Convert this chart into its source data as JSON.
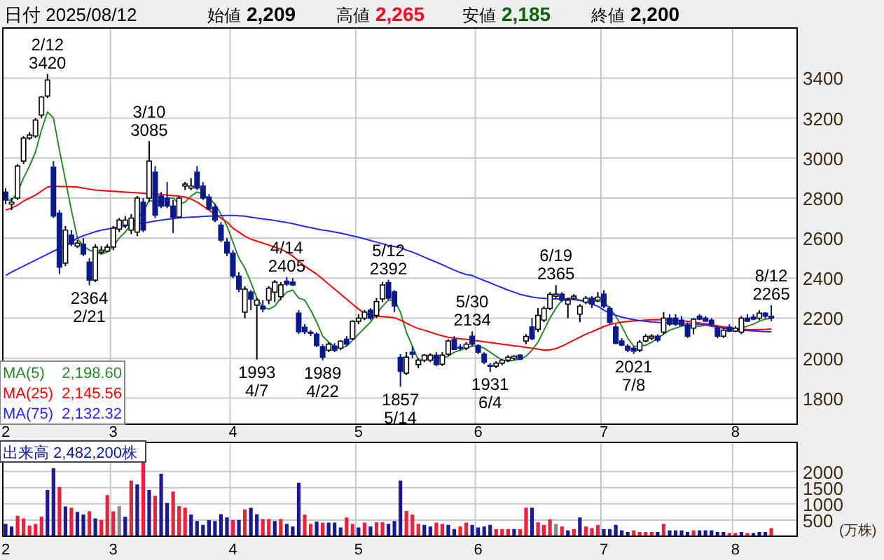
{
  "chart_data": [
    {
      "type": "candlestick",
      "title": "日付 2025/08/12",
      "annotations": [
        "始値 2,209",
        "高値 2,265",
        "安値 2,185",
        "終値 2,200",
        "2,198.60",
        "2,145.56",
        "2,132.32",
        {
          "text": "2/12\n3420",
          "y": 3420
        },
        {
          "text": "3/10\n3085",
          "y": 3085
        },
        {
          "text": "4/14\n2405",
          "y": 2405
        },
        {
          "text": "5/12\n2392",
          "y": 2392
        },
        {
          "text": "5/30\n2134",
          "y": 2134
        },
        {
          "text": "6/19\n2365",
          "y": 2365
        },
        {
          "text": "8/12\n2265",
          "y": 2265
        },
        {
          "text": "2364\n2/21",
          "y": 2364
        },
        {
          "text": "1993\n4/7",
          "y": 1993
        },
        {
          "text": "1989\n4/22",
          "y": 1989
        },
        {
          "text": "1857\n5/14",
          "y": 1857
        },
        {
          "text": "1931\n6/4",
          "y": 1931
        },
        {
          "text": "2021\n7/8",
          "y": 2021
        }
      ],
      "categories": [
        "2",
        null,
        null,
        null,
        null,
        null,
        null,
        null,
        null,
        null,
        null,
        null,
        null,
        null,
        null,
        null,
        null,
        null,
        "3",
        null,
        null,
        null,
        null,
        null,
        null,
        null,
        null,
        null,
        null,
        null,
        null,
        null,
        null,
        null,
        null,
        null,
        null,
        null,
        "4",
        null,
        null,
        null,
        null,
        null,
        null,
        null,
        null,
        null,
        null,
        null,
        null,
        null,
        null,
        null,
        null,
        null,
        null,
        null,
        null,
        "5",
        null,
        null,
        null,
        null,
        null,
        null,
        null,
        null,
        null,
        null,
        null,
        null,
        null,
        null,
        null,
        null,
        null,
        null,
        null,
        "6",
        null,
        null,
        null,
        null,
        null,
        null,
        null,
        null,
        null,
        null,
        null,
        null,
        null,
        null,
        null,
        null,
        null,
        null,
        null,
        null,
        "7",
        null,
        null,
        null,
        null,
        null,
        null,
        null,
        null,
        null,
        null,
        null,
        null,
        null,
        null,
        null,
        null,
        null,
        null,
        null,
        null,
        null,
        "8",
        null,
        null,
        null,
        null,
        null,
        null
      ],
      "ohlc": [
        [
          2830,
          2850,
          2770,
          2790
        ],
        [
          2770,
          2800,
          2740,
          2780
        ],
        [
          2800,
          2970,
          2790,
          2960
        ],
        [
          2985,
          3110,
          2970,
          3100
        ],
        [
          3100,
          3130,
          3090,
          3115
        ],
        [
          3110,
          3200,
          3100,
          3190
        ],
        [
          3215,
          3310,
          3200,
          3305
        ],
        [
          3310,
          3420,
          3300,
          3390
        ],
        [
          2955,
          2985,
          2700,
          2710
        ],
        [
          2725,
          2740,
          2420,
          2455
        ],
        [
          2475,
          2660,
          2460,
          2640
        ],
        [
          2615,
          2640,
          2560,
          2570
        ],
        [
          2560,
          2590,
          2550,
          2575
        ],
        [
          2570,
          2600,
          2510,
          2520
        ],
        [
          2480,
          2500,
          2364,
          2390
        ],
        [
          2390,
          2570,
          2380,
          2555
        ],
        [
          2530,
          2560,
          2520,
          2540
        ],
        [
          2535,
          2570,
          2530,
          2555
        ],
        [
          2555,
          2660,
          2540,
          2650
        ],
        [
          2645,
          2700,
          2630,
          2690
        ],
        [
          2665,
          2710,
          2650,
          2690
        ],
        [
          2640,
          2720,
          2620,
          2700
        ],
        [
          2630,
          2810,
          2610,
          2800
        ],
        [
          2780,
          2800,
          2630,
          2640
        ],
        [
          2800,
          3085,
          2780,
          2985
        ],
        [
          2930,
          2960,
          2700,
          2715
        ],
        [
          2810,
          2830,
          2750,
          2760
        ],
        [
          2800,
          2880,
          2750,
          2760
        ],
        [
          2760,
          2790,
          2625,
          2705
        ],
        [
          2705,
          2810,
          2700,
          2800
        ],
        [
          2860,
          2880,
          2840,
          2870
        ],
        [
          2850,
          2900,
          2840,
          2860
        ],
        [
          2930,
          2960,
          2840,
          2850
        ],
        [
          2860,
          2880,
          2790,
          2800
        ],
        [
          2805,
          2820,
          2740,
          2745
        ],
        [
          2755,
          2770,
          2680,
          2690
        ],
        [
          2665,
          2680,
          2580,
          2590
        ],
        [
          2580,
          2600,
          2510,
          2525
        ],
        [
          2525,
          2540,
          2400,
          2410
        ],
        [
          2410,
          2430,
          2330,
          2345
        ],
        [
          2230,
          2360,
          2200,
          2345
        ],
        [
          2330,
          2340,
          2240,
          2295
        ],
        [
          2265,
          2300,
          1993,
          2290
        ],
        [
          2260,
          2290,
          2230,
          2245
        ],
        [
          2290,
          2360,
          2270,
          2350
        ],
        [
          2330,
          2390,
          2280,
          2380
        ],
        [
          2307,
          2380,
          2290,
          2366
        ],
        [
          2385,
          2405,
          2360,
          2370
        ],
        [
          2380,
          2400,
          2360,
          2366
        ],
        [
          2225,
          2240,
          2120,
          2132
        ],
        [
          2155,
          2170,
          2120,
          2132
        ],
        [
          2130,
          2140,
          2110,
          2125
        ],
        [
          2120,
          2130,
          2055,
          2063
        ],
        [
          2058,
          2070,
          1989,
          2005
        ],
        [
          2040,
          2080,
          2030,
          2070
        ],
        [
          2060,
          2075,
          2030,
          2040
        ],
        [
          2050,
          2090,
          2040,
          2085
        ],
        [
          2095,
          2110,
          2060,
          2070
        ],
        [
          2097,
          2190,
          2090,
          2184
        ],
        [
          2184,
          2220,
          2170,
          2200
        ],
        [
          2200,
          2240,
          2190,
          2230
        ],
        [
          2240,
          2250,
          2190,
          2200
        ],
        [
          2214,
          2300,
          2200,
          2283
        ],
        [
          2296,
          2380,
          2280,
          2366
        ],
        [
          2378,
          2392,
          2290,
          2300
        ],
        [
          2331,
          2340,
          2230,
          2261
        ],
        [
          2004,
          2020,
          1857,
          1934
        ],
        [
          1925,
          2030,
          1915,
          2005
        ],
        [
          2030,
          2060,
          2000,
          2020
        ],
        [
          1968,
          2000,
          1950,
          1990
        ],
        [
          1990,
          2020,
          1980,
          2015
        ],
        [
          1990,
          2025,
          1980,
          2015
        ],
        [
          2015,
          2030,
          1960,
          1968
        ],
        [
          1970,
          2030,
          1960,
          2015
        ],
        [
          2020,
          2095,
          2010,
          2086
        ],
        [
          2093,
          2110,
          2040,
          2044
        ],
        [
          2055,
          2070,
          2040,
          2050
        ],
        [
          2050,
          2080,
          2040,
          2070
        ],
        [
          2110,
          2134,
          2060,
          2070
        ],
        [
          2063,
          2070,
          2020,
          2030
        ],
        [
          2020,
          2030,
          1970,
          1980
        ],
        [
          1965,
          1975,
          1931,
          1960
        ],
        [
          1960,
          1985,
          1950,
          1975
        ],
        [
          1975,
          1995,
          1965,
          1990
        ],
        [
          1990,
          2015,
          1980,
          2005
        ],
        [
          2000,
          2015,
          1990,
          2010
        ],
        [
          2015,
          2020,
          1990,
          1995
        ],
        [
          2086,
          2120,
          2070,
          2109
        ],
        [
          2156,
          2200,
          2090,
          2097
        ],
        [
          2144,
          2250,
          2130,
          2214
        ],
        [
          2190,
          2260,
          2180,
          2249
        ],
        [
          2249,
          2330,
          2240,
          2319
        ],
        [
          2310,
          2365,
          2300,
          2320
        ],
        [
          2320,
          2330,
          2280,
          2290
        ],
        [
          2270,
          2300,
          2200,
          2290
        ],
        [
          2300,
          2320,
          2290,
          2310
        ],
        [
          2220,
          2270,
          2180,
          2260
        ],
        [
          2280,
          2310,
          2270,
          2300
        ],
        [
          2300,
          2310,
          2250,
          2270
        ],
        [
          2290,
          2330,
          2280,
          2305
        ],
        [
          2320,
          2340,
          2250,
          2260
        ],
        [
          2249,
          2260,
          2170,
          2179
        ],
        [
          2156,
          2170,
          2070,
          2074
        ],
        [
          2086,
          2100,
          2060,
          2065
        ],
        [
          2060,
          2070,
          2030,
          2040
        ],
        [
          2050,
          2060,
          2021,
          2035
        ],
        [
          2040,
          2090,
          2030,
          2080
        ],
        [
          2086,
          2120,
          2080,
          2109
        ],
        [
          2100,
          2120,
          2090,
          2110
        ],
        [
          2110,
          2120,
          2080,
          2090
        ],
        [
          2130,
          2230,
          2120,
          2200
        ],
        [
          2200,
          2220,
          2160,
          2170
        ],
        [
          2200,
          2220,
          2160,
          2170
        ],
        [
          2190,
          2210,
          2160,
          2165
        ],
        [
          2165,
          2180,
          2100,
          2110
        ],
        [
          2150,
          2200,
          2120,
          2195
        ],
        [
          2210,
          2220,
          2190,
          2195
        ],
        [
          2200,
          2210,
          2180,
          2185
        ],
        [
          2190,
          2200,
          2160,
          2170
        ],
        [
          2150,
          2160,
          2100,
          2110
        ],
        [
          2110,
          2150,
          2100,
          2140
        ],
        [
          2155,
          2170,
          2130,
          2135
        ],
        [
          2135,
          2160,
          2130,
          2150
        ],
        [
          2130,
          2210,
          2120,
          2200
        ],
        [
          2200,
          2220,
          2180,
          2185
        ],
        [
          2205,
          2220,
          2190,
          2195
        ],
        [
          2200,
          2240,
          2190,
          2225
        ],
        [
          2225,
          2230,
          2200,
          2210
        ],
        [
          2209,
          2265,
          2185,
          2200
        ]
      ],
      "series": [
        {
          "name": "MA(5)",
          "type": "line",
          "color": "#2a8a2a",
          "values": [
            2790,
            2790,
            2830,
            2900,
            2960,
            3030,
            3140,
            3230,
            3200,
            3040,
            2890,
            2740,
            2600,
            2560,
            2540,
            2530,
            2520,
            2530,
            2560,
            2600,
            2630,
            2670,
            2700,
            2730,
            2790,
            2780,
            2790,
            2800,
            2800,
            2770,
            2780,
            2810,
            2830,
            2820,
            2800,
            2770,
            2720,
            2660,
            2580,
            2500,
            2450,
            2380,
            2300,
            2255,
            2245,
            2260,
            2300,
            2330,
            2340,
            2300,
            2290,
            2240,
            2180,
            2110,
            2080,
            2060,
            2050,
            2060,
            2090,
            2120,
            2150,
            2180,
            2220,
            2260,
            2290,
            2290,
            2230,
            2130,
            2060,
            1990,
            1990,
            2000,
            2000,
            2000,
            2010,
            2030,
            2040,
            2050,
            2060,
            2060,
            2050,
            2030,
            2010,
            1990,
            1985,
            1990,
            1995,
            2010,
            2040,
            2080,
            2140,
            2200,
            2250,
            2290,
            2300,
            2300,
            2290,
            2290,
            2285,
            2285,
            2280,
            2250,
            2210,
            2160,
            2100,
            2060,
            2060,
            2065,
            2080,
            2100,
            2120,
            2140,
            2150,
            2160,
            2165,
            2160,
            2160,
            2165,
            2165,
            2160,
            2155,
            2150,
            2140,
            2150,
            2160,
            2170,
            2185,
            2195,
            2199
          ]
        },
        {
          "name": "MA(25)",
          "type": "line",
          "color": "#ff0000",
          "values": [
            2740,
            2750,
            2765,
            2785,
            2800,
            2815,
            2835,
            2855,
            2860,
            2858,
            2858,
            2857,
            2855,
            2850,
            2845,
            2840,
            2838,
            2836,
            2834,
            2832,
            2830,
            2828,
            2826,
            2824,
            2822,
            2820,
            2818,
            2815,
            2812,
            2810,
            2805,
            2795,
            2780,
            2760,
            2740,
            2720,
            2700,
            2680,
            2650,
            2630,
            2610,
            2595,
            2585,
            2575,
            2565,
            2555,
            2545,
            2530,
            2510,
            2485,
            2460,
            2440,
            2420,
            2395,
            2370,
            2345,
            2320,
            2295,
            2270,
            2245,
            2225,
            2215,
            2210,
            2208,
            2205,
            2202,
            2190,
            2175,
            2160,
            2148,
            2140,
            2130,
            2120,
            2112,
            2105,
            2100,
            2097,
            2094,
            2090,
            2086,
            2082,
            2078,
            2074,
            2070,
            2066,
            2062,
            2058,
            2054,
            2050,
            2045,
            2040,
            2042,
            2048,
            2060,
            2075,
            2090,
            2105,
            2120,
            2132,
            2145,
            2158,
            2168,
            2175,
            2180,
            2183,
            2186,
            2188,
            2190,
            2191,
            2192,
            2192,
            2190,
            2188,
            2186,
            2184,
            2180,
            2176,
            2172,
            2168,
            2162,
            2156,
            2152,
            2148,
            2145,
            2143,
            2142,
            2143,
            2144,
            2146
          ]
        },
        {
          "name": "MA(75)",
          "type": "line",
          "color": "#2828ff",
          "values": [
            2413,
            2430,
            2445,
            2460,
            2475,
            2490,
            2505,
            2520,
            2535,
            2548,
            2560,
            2580,
            2600,
            2612,
            2622,
            2632,
            2640,
            2645,
            2651,
            2656,
            2661,
            2666,
            null,
            2675,
            2680,
            2685,
            2690,
            2694,
            2698,
            2701,
            2703,
            2705,
            2706,
            2708,
            2710,
            2711,
            2712,
            2713,
            2713,
            2712,
            2710,
            2705,
            2700,
            2696,
            2692,
            2688,
            2683,
            2678,
            2672,
            2665,
            2658,
            2652,
            2646,
            2640,
            2636,
            2630,
            2625,
            2618,
            2611,
            2604,
            2596,
            2588,
            2580,
            2572,
            2563,
            2558,
            2553,
            2540,
            2530,
            2518,
            2505,
            2492,
            2480,
            2467,
            2453,
            2440,
            2428,
            2418,
            2413,
            2400,
            2388,
            2376,
            2364,
            2352,
            2340,
            2330,
            2319,
            2312,
            2306,
            2301,
            2299,
            2297,
            2296,
            2296,
            2295,
            2293,
            2288,
            2283,
            2270,
            2260,
            2240,
            2225,
            2215,
            2205,
            2198,
            2192,
            2188,
            2184,
            2181,
            2179,
            2178,
            2176,
            2175,
            2173,
            2171,
            2170,
            2169,
            2167,
            2160,
            2155,
            2150,
            2146,
            2143,
            2140,
            2138,
            2136,
            2134,
            2133,
            2132
          ]
        }
      ],
      "ylim": [
        1670,
        3650
      ],
      "yticks": [
        1800,
        2000,
        2200,
        2400,
        2600,
        2800,
        3000,
        3200,
        3400
      ],
      "grid": true,
      "legend": "bottom left"
    },
    {
      "type": "bar",
      "title": "出来高 2,482,200株",
      "ylabel": "(万株)",
      "categories": [
        "2",
        null,
        null,
        null,
        null,
        null,
        null,
        null,
        null,
        null,
        null,
        null,
        null,
        null,
        null,
        null,
        null,
        null,
        "3",
        null,
        null,
        null,
        null,
        null,
        null,
        null,
        null,
        null,
        null,
        null,
        null,
        null,
        null,
        null,
        null,
        null,
        null,
        null,
        "4",
        null,
        null,
        null,
        null,
        null,
        null,
        null,
        null,
        null,
        null,
        null,
        null,
        null,
        null,
        null,
        null,
        null,
        null,
        null,
        null,
        "5",
        null,
        null,
        null,
        null,
        null,
        null,
        null,
        null,
        null,
        null,
        null,
        null,
        null,
        null,
        null,
        null,
        null,
        null,
        null,
        "6",
        null,
        null,
        null,
        null,
        null,
        null,
        null,
        null,
        null,
        null,
        null,
        null,
        null,
        null,
        null,
        null,
        null,
        null,
        null,
        null,
        "7",
        null,
        null,
        null,
        null,
        null,
        null,
        null,
        null,
        null,
        null,
        null,
        null,
        null,
        null,
        null,
        null,
        null,
        null,
        null,
        null,
        null,
        "8",
        null,
        null,
        null,
        null,
        null,
        null
      ],
      "values": [
        380,
        300,
        630,
        550,
        330,
        380,
        600,
        1430,
        2100,
        1520,
        920,
        880,
        750,
        670,
        770,
        550,
        500,
        1270,
        770,
        930,
        600,
        1720,
        1600,
        2300,
        1430,
        1250,
        1930,
        1030,
        1380,
        930,
        880,
        670,
        470,
        350,
        500,
        470,
        680,
        580,
        500,
        500,
        830,
        880,
        680,
        530,
        530,
        470,
        530,
        380,
        300,
        1650,
        670,
        380,
        450,
        420,
        420,
        420,
        270,
        580,
        380,
        270,
        420,
        300,
        430,
        430,
        380,
        470,
        1720,
        780,
        670,
        380,
        350,
        300,
        420,
        380,
        350,
        220,
        300,
        420,
        350,
        270,
        300,
        350,
        220,
        220,
        220,
        220,
        220,
        880,
        880,
        430,
        350,
        520,
        380,
        300,
        180,
        220,
        580,
        300,
        250,
        350,
        220,
        220,
        350,
        180,
        130,
        180,
        130,
        130,
        130,
        130,
        380,
        180,
        180,
        180,
        130,
        180,
        180,
        180,
        180,
        130,
        130,
        100,
        100,
        130,
        100,
        100,
        130,
        130,
        250
      ],
      "colors": [
        "#1a1a96",
        "#1a1a96",
        "#f0203c",
        "#f0203c",
        "#f0203c",
        "#f0203c",
        "#f0203c",
        "#1a1a96",
        "#1a1a96",
        "#f0203c",
        "#1a1a96",
        "#f0203c",
        "#1a1a96",
        "#1a1a96",
        "#f0203c",
        "#1a1a96",
        "#f0203c",
        "#f0203c",
        "#f0203c",
        "#888888",
        "#1a1a96",
        "#f0203c",
        "#1a1a96",
        "#f0203c",
        "#1a1a96",
        "#f0203c",
        "#1a1a96",
        "#1a1a96",
        "#f0203c",
        "#f0203c",
        "#f0203c",
        "#1a1a96",
        "#1a1a96",
        "#1a1a96",
        "#1a1a96",
        "#1a1a96",
        "#1a1a96",
        "#1a1a96",
        "#f0203c",
        "#1a1a96",
        "#f0203c",
        "#1a1a96",
        "#1a1a96",
        "#f0203c",
        "#f0203c",
        "#1a1a96",
        "#f0203c",
        "#1a1a96",
        "#1a1a96",
        "#1a1a96",
        "#f0203c",
        "#f0203c",
        "#1a1a96",
        "#f0203c",
        "#1a1a96",
        "#1a1a96",
        "#1a1a96",
        "#f0203c",
        "#f0203c",
        "#1a1a96",
        "#f0203c",
        "#1a1a96",
        "#f0203c",
        "#f0203c",
        "#1a1a96",
        "#1a1a96",
        "#1a1a96",
        "#f0203c",
        "#f0203c",
        "#f0203c",
        "#1a1a96",
        "#1a1a96",
        "#f0203c",
        "#f0203c",
        "#1a1a96",
        "#1a1a96",
        "#f0203c",
        "#f0203c",
        "#1a1a96",
        "#1a1a96",
        "#1a1a96",
        "#1a1a96",
        "#f0203c",
        "#f0203c",
        "#f0203c",
        "#1a1a96",
        "#f0203c",
        "#f0203c",
        "#1a1a96",
        "#f0203c",
        "#f0203c",
        "#f0203c",
        "#888888",
        "#f0203c",
        "#1a1a96",
        "#f0203c",
        "#1a1a96",
        "#f0203c",
        "#f0203c",
        "#f0203c",
        "#1a1a96",
        "#1a1a96",
        "#1a1a96",
        "#1a1a96",
        "#1a1a96",
        "#f0203c",
        "#f0203c",
        "#f0203c",
        "#f0203c",
        "#1a1a96",
        "#f0203c",
        "#1a1a96",
        "#1a1a96",
        "#1a1a96",
        "#1a1a96",
        "#f0203c",
        "#1a1a96",
        "#1a1a96",
        "#1a1a96",
        "#1a1a96",
        "#1a1a96",
        "#f0203c",
        "#f0203c",
        "#1a1a96",
        "#f0203c",
        "#1a1a96",
        "#1a1a96",
        "#1a1a96",
        "#f0203c"
      ],
      "ylim": [
        0,
        2900
      ],
      "yticks": [
        500,
        1000,
        1500,
        2000
      ],
      "grid": true
    }
  ]
}
